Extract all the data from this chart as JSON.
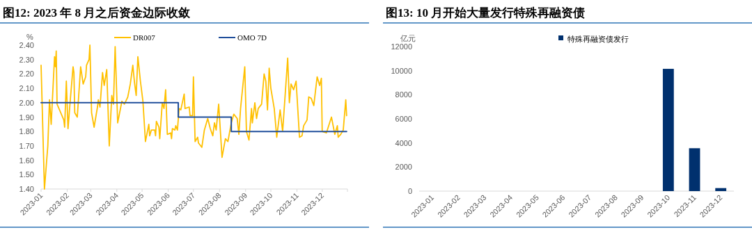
{
  "chart_data": [
    {
      "type": "line",
      "title": "图12: 2023 年 8 月之后资金边际收敛",
      "ylabel": "%",
      "legend": "top",
      "xlim": [
        "2023-01-01",
        "2023-12-31"
      ],
      "xticks": [
        {
          "value": "2023-01",
          "label": "2023-01"
        },
        {
          "value": "2023-02",
          "label": "2023-02"
        },
        {
          "value": "2023-03",
          "label": "2023-03"
        },
        {
          "value": "2023-04",
          "label": "2023-04"
        },
        {
          "value": "2023-05",
          "label": "2023-05"
        },
        {
          "value": "2023-06",
          "label": "2023-06"
        },
        {
          "value": "2023-07",
          "label": "2023-07"
        },
        {
          "value": "2023-08",
          "label": "2023-08"
        },
        {
          "value": "2023-09",
          "label": "2023-09"
        },
        {
          "value": "2023-10",
          "label": "2023-10"
        },
        {
          "value": "2023-11",
          "label": "2023-11"
        },
        {
          "value": "2023-12",
          "label": "2023-12"
        }
      ],
      "ylim": [
        1.4,
        2.4
      ],
      "yticks": [
        {
          "value": 1.4,
          "label": "1.40"
        },
        {
          "value": 1.5,
          "label": "1.50"
        },
        {
          "value": 1.6,
          "label": "1.60"
        },
        {
          "value": 1.7,
          "label": "1.70"
        },
        {
          "value": 1.8,
          "label": "1.80"
        },
        {
          "value": 1.9,
          "label": "1.90"
        },
        {
          "value": 2.0,
          "label": "2.00"
        },
        {
          "value": 2.1,
          "label": "2.10"
        },
        {
          "value": 2.2,
          "label": "2.20"
        },
        {
          "value": 2.3,
          "label": "2.30"
        },
        {
          "value": 2.4,
          "label": "2.40"
        }
      ],
      "series": [
        {
          "name": "DR007",
          "type": "line",
          "color": "#ffc000",
          "x": [
            "2023-01-01",
            "2023-01-05",
            "2023-01-09",
            "2023-01-11",
            "2023-01-13",
            "2023-01-17",
            "2023-01-18",
            "2023-01-19",
            "2023-01-20",
            "2023-01-28",
            "2023-01-29",
            "2023-01-31",
            "2023-02-02",
            "2023-02-05",
            "2023-02-08",
            "2023-02-09",
            "2023-02-10",
            "2023-02-13",
            "2023-02-17",
            "2023-02-20",
            "2023-02-23",
            "2023-02-24",
            "2023-02-27",
            "2023-02-28",
            "2023-03-02",
            "2023-03-05",
            "2023-03-09",
            "2023-03-10",
            "2023-03-12",
            "2023-03-15",
            "2023-03-17",
            "2023-03-20",
            "2023-03-23",
            "2023-03-26",
            "2023-03-28",
            "2023-03-30",
            "2023-04-02",
            "2023-04-07",
            "2023-04-10",
            "2023-04-14",
            "2023-04-17",
            "2023-04-20",
            "2023-04-22",
            "2023-04-24",
            "2023-04-26",
            "2023-04-29",
            "2023-05-02",
            "2023-05-05",
            "2023-05-09",
            "2023-05-10",
            "2023-05-12",
            "2023-05-16",
            "2023-05-17",
            "2023-05-18",
            "2023-05-21",
            "2023-05-22",
            "2023-05-25",
            "2023-05-27",
            "2023-05-29",
            "2023-05-31",
            "2023-06-04",
            "2023-06-05",
            "2023-06-06",
            "2023-06-09",
            "2023-06-10",
            "2023-06-12",
            "2023-06-14",
            "2023-06-16",
            "2023-06-20",
            "2023-06-21",
            "2023-06-26",
            "2023-06-27",
            "2023-06-30",
            "2023-07-01",
            "2023-07-03",
            "2023-07-06",
            "2023-07-07",
            "2023-07-11",
            "2023-07-14",
            "2023-07-18",
            "2023-07-21",
            "2023-07-24",
            "2023-07-26",
            "2023-07-28",
            "2023-07-31",
            "2023-08-04",
            "2023-08-08",
            "2023-08-11",
            "2023-08-15",
            "2023-08-18",
            "2023-08-22",
            "2023-08-24",
            "2023-08-26",
            "2023-08-31",
            "2023-09-02",
            "2023-09-05",
            "2023-09-08",
            "2023-09-09",
            "2023-09-12",
            "2023-09-14",
            "2023-09-16",
            "2023-09-20",
            "2023-09-23",
            "2023-09-25",
            "2023-09-27",
            "2023-09-29",
            "2023-10-01",
            "2023-10-05",
            "2023-10-08",
            "2023-10-12",
            "2023-10-15",
            "2023-10-21",
            "2023-10-23",
            "2023-10-25",
            "2023-10-28",
            "2023-10-31",
            "2023-11-04",
            "2023-11-07",
            "2023-11-09",
            "2023-11-13",
            "2023-11-15",
            "2023-11-18",
            "2023-11-21",
            "2023-11-25",
            "2023-11-28",
            "2023-11-30",
            "2023-12-01",
            "2023-12-06",
            "2023-12-12",
            "2023-12-16",
            "2023-12-19",
            "2023-12-20",
            "2023-12-23",
            "2023-12-26",
            "2023-12-29",
            "2023-12-30"
          ],
          "values": [
            2.26,
            1.4,
            1.7,
            2.02,
            1.85,
            2.32,
            2.25,
            2.36,
            1.99,
            1.88,
            1.83,
            2.15,
            1.82,
            2.04,
            2.25,
            2.21,
            1.93,
            1.9,
            2.25,
            2.13,
            2.18,
            2.26,
            2.3,
            2.4,
            1.93,
            1.83,
            1.97,
            2.02,
            1.97,
            2.21,
            2.12,
            2.23,
            1.7,
            2.05,
            1.99,
            2.39,
            1.86,
            2.01,
            1.99,
            2.04,
            2.13,
            2.26,
            2.14,
            2.05,
            2.32,
            2.15,
            2.01,
            1.73,
            1.85,
            1.77,
            1.81,
            1.81,
            1.77,
            1.87,
            1.83,
            1.75,
            2.0,
            1.96,
            2.09,
            1.78,
            1.79,
            1.75,
            1.82,
            1.81,
            1.84,
            1.81,
            1.96,
            1.95,
            2.06,
            1.96,
            1.97,
            1.91,
            1.91,
            2.18,
            1.73,
            1.76,
            1.72,
            1.69,
            1.81,
            1.89,
            1.82,
            1.77,
            1.86,
            1.81,
            1.99,
            1.62,
            1.75,
            1.73,
            1.86,
            1.92,
            1.89,
            1.78,
            1.96,
            2.25,
            1.8,
            1.74,
            1.96,
            1.86,
            2.0,
            1.89,
            1.96,
            1.99,
            2.2,
            2.15,
            1.95,
            2.24,
            2.1,
            1.96,
            1.76,
            1.95,
            1.8,
            2.31,
            2.0,
            2.13,
            2.09,
            2.15,
            1.76,
            1.77,
            1.84,
            1.88,
            2.04,
            2.03,
            1.98,
            2.18,
            2.12,
            2.17,
            1.8,
            1.79,
            1.9,
            1.78,
            1.84,
            1.76,
            1.78,
            1.81,
            2.02,
            1.91
          ]
        },
        {
          "name": "OMO 7D",
          "type": "step",
          "color": "#1f4e9a",
          "x": [
            "2023-01-01",
            "2023-06-13",
            "2023-08-15",
            "2023-12-30"
          ],
          "values": [
            2.0,
            1.9,
            1.8,
            1.8
          ]
        }
      ]
    },
    {
      "type": "bar",
      "title": "图13: 10 月开始大量发行特殊再融资债",
      "ylabel": "亿元",
      "legend": "top",
      "categories": [
        "2023-01",
        "2023-02",
        "2023-03",
        "2023-04",
        "2023-05",
        "2023-06",
        "2023-07",
        "2023-08",
        "2023-09",
        "2023-10",
        "2023-11",
        "2023-12"
      ],
      "ylim": [
        0,
        12000
      ],
      "yticks": [
        0,
        2000,
        4000,
        6000,
        8000,
        10000,
        12000
      ],
      "series": [
        {
          "name": "特殊再融资债发行",
          "color": "#00306e",
          "values": [
            0,
            0,
            0,
            0,
            0,
            0,
            0,
            0,
            0,
            10150,
            3560,
            250
          ]
        }
      ]
    }
  ]
}
